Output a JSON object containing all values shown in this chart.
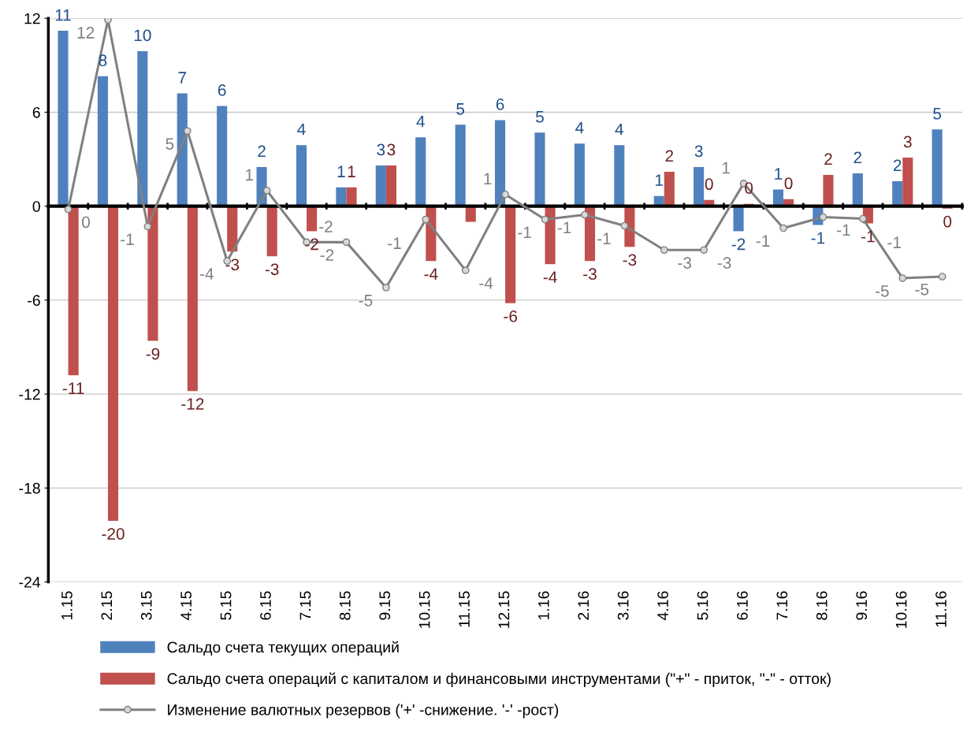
{
  "chart_data": {
    "type": "bar",
    "categories": [
      "1.15",
      "2.15",
      "3.15",
      "4.15",
      "5.15",
      "6.15",
      "7.15",
      "8.15",
      "9.15",
      "10.15",
      "11.15",
      "12.15",
      "1.16",
      "2.16",
      "3.16",
      "4.16",
      "5.16",
      "6.16",
      "7.16",
      "8.16",
      "9.16",
      "10.16",
      "11.16"
    ],
    "series": [
      {
        "name": "Сальдо счета текущих операций",
        "color": "#4f81bd",
        "values": [
          11.2,
          8.3,
          9.9,
          7.2,
          6.4,
          2.5,
          3.9,
          1.2,
          2.6,
          4.4,
          5.2,
          5.5,
          4.7,
          4.0,
          3.9,
          0.65,
          2.5,
          -1.6,
          1.06,
          -1.2,
          2.1,
          1.6,
          4.9
        ],
        "value_labels": [
          "11",
          "8",
          "10",
          "7",
          "6",
          "2",
          "4",
          "1",
          "3",
          "4",
          "5",
          "6",
          "5",
          "4",
          "4",
          "1",
          "3",
          "-2",
          "1",
          "-1",
          "2",
          "2",
          "5"
        ]
      },
      {
        "name": "Сальдо счета операций с капиталом и финансовыми инструментами (\"+\" - приток, \"-\" - отток)",
        "color": "#c0504d",
        "values": [
          -10.8,
          -20.1,
          -8.6,
          -11.8,
          -2.9,
          -3.2,
          -1.6,
          1.2,
          2.6,
          -3.5,
          -1.0,
          -6.2,
          -3.7,
          -3.5,
          -2.6,
          2.2,
          0.4,
          0.15,
          0.45,
          2.0,
          -1.1,
          3.1,
          -0.15
        ],
        "value_labels": [
          "-11",
          "-20",
          "-9",
          "-12",
          "-3",
          "-3",
          "-2",
          "1",
          "3",
          "-4",
          null,
          "-6",
          "-4",
          "-3",
          "-3",
          "2",
          "0",
          "0",
          "0",
          "2",
          "-1",
          "3",
          "0"
        ]
      },
      {
        "name": "Изменение валютных резервов ('+' -снижение. '-' -рост)",
        "type": "line",
        "color": "#808080",
        "marker": "circle",
        "values": [
          -0.2,
          11.9,
          -1.3,
          4.8,
          -3.5,
          1.0,
          -2.3,
          -2.3,
          -5.2,
          -0.85,
          -4.1,
          0.75,
          -0.85,
          -0.55,
          -1.25,
          -2.8,
          -2.8,
          1.45,
          -1.4,
          -0.7,
          -0.8,
          -4.6,
          -4.5
        ],
        "value_labels": [
          "0",
          "12",
          "-1",
          "5",
          "-4",
          "1",
          "-2",
          "-2",
          "-5",
          "-1",
          "-4",
          "1",
          "-1",
          "-1",
          "-1",
          "-3",
          "-3",
          "1",
          "-1",
          "-1",
          "-1",
          "-5",
          "-5"
        ]
      }
    ],
    "ylim": [
      -24,
      12
    ],
    "yticks": [
      -24,
      -18,
      -12,
      -6,
      0,
      6,
      12
    ],
    "grid": true,
    "legend": "bottom"
  }
}
